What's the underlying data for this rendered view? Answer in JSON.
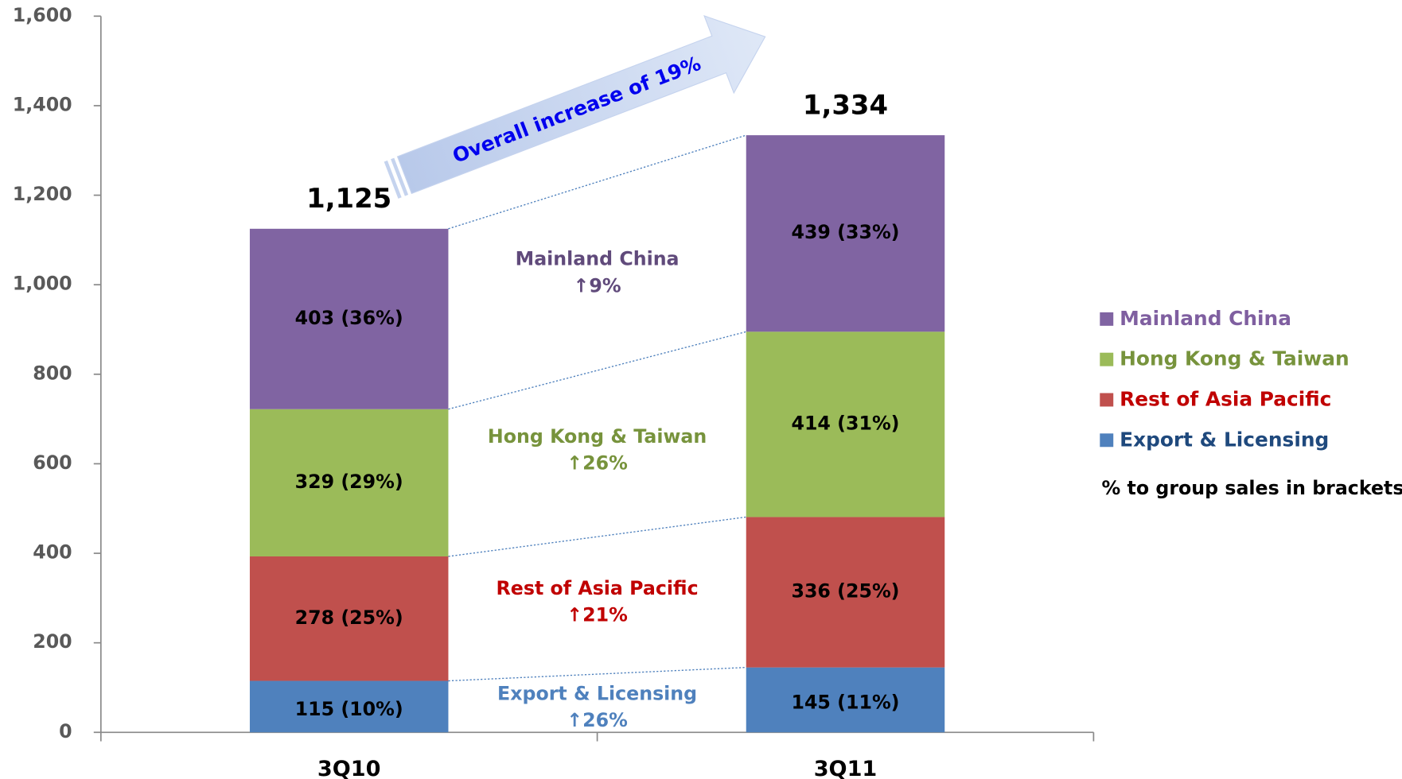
{
  "chart_data": {
    "type": "stacked_bar",
    "categories": [
      "3Q10",
      "3Q11"
    ],
    "series": [
      {
        "name": "Export & Licensing",
        "color": "#4f81bd",
        "legend_color": "#1f497d",
        "values": [
          115,
          145
        ],
        "value_labels": [
          "115 (10%)",
          "145 (11%)"
        ]
      },
      {
        "name": "Rest of Asia Pacific",
        "color": "#c0504d",
        "legend_color": "#c00000",
        "values": [
          278,
          336
        ],
        "value_labels": [
          "278 (25%)",
          "336 (25%)"
        ]
      },
      {
        "name": "Hong Kong & Taiwan",
        "color": "#9bbb59",
        "legend_color": "#77933c",
        "values": [
          329,
          414
        ],
        "value_labels": [
          "329 (29%)",
          "414 (31%)"
        ]
      },
      {
        "name": "Mainland China",
        "color": "#8064a2",
        "legend_color": "#7f5fa0",
        "values": [
          403,
          439
        ],
        "value_labels": [
          "403 (36%)",
          "439 (33%)"
        ]
      }
    ],
    "totals": [
      1125,
      1334
    ],
    "total_labels": [
      "1,125",
      "1,334"
    ],
    "growth": [
      {
        "name": "Export & Licensing",
        "change": "↑26%",
        "color": "#4f81bd"
      },
      {
        "name": "Rest of Asia Pacific",
        "change": "↑21%",
        "color": "#c00000"
      },
      {
        "name": "Hong Kong & Taiwan",
        "change": "↑26%",
        "color": "#77933c"
      },
      {
        "name": "Mainland China",
        "change": "↑9%",
        "color": "#604a7b"
      }
    ],
    "annotation": "Overall increase of 19%",
    "legend_note": "% to group sales in brackets",
    "ylim": [
      0,
      1600
    ],
    "yticks": [
      0,
      200,
      400,
      600,
      800,
      {
        "value": 1000,
        "label": "1,000"
      },
      {
        "value": 1200,
        "label": "1,200"
      },
      {
        "value": 1400,
        "label": "1,400"
      },
      {
        "value": 1600,
        "label": "1,600"
      }
    ],
    "legend": "right"
  }
}
